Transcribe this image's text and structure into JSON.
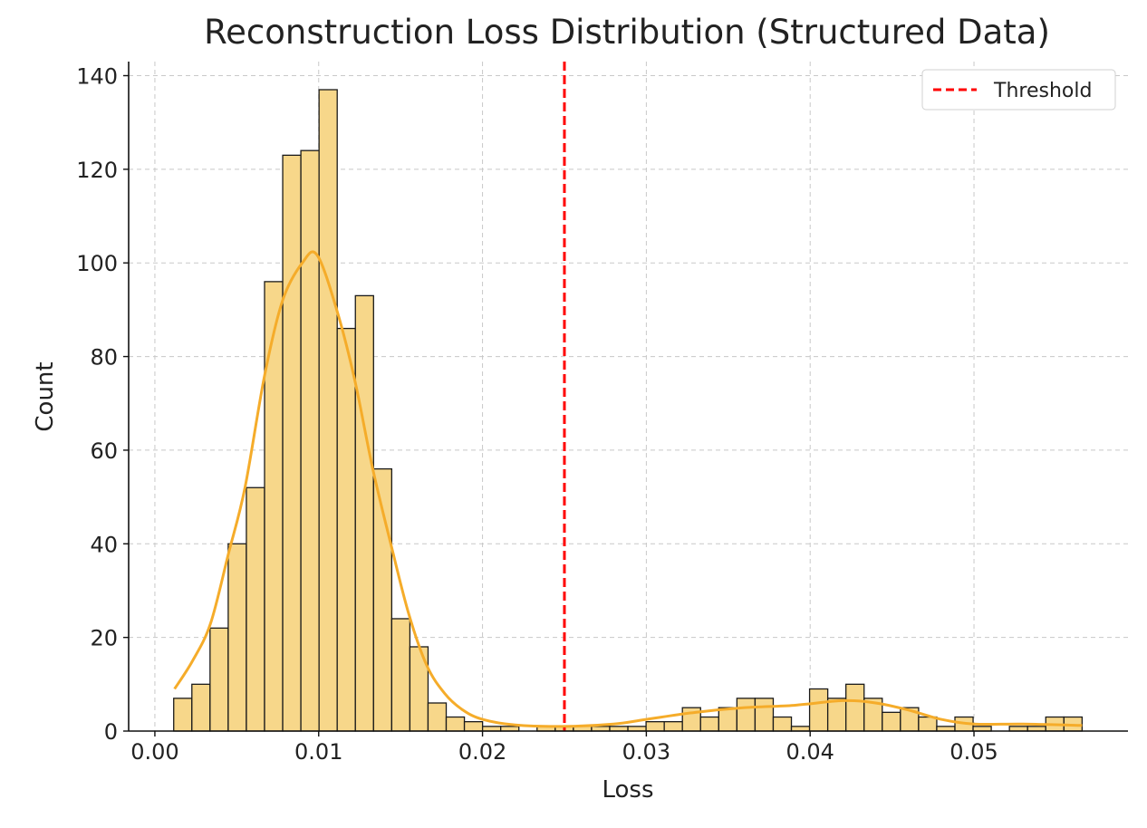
{
  "chart_data": {
    "type": "histogram",
    "title": "Reconstruction Loss Distribution (Structured Data)",
    "xlabel": "Loss",
    "ylabel": "Count",
    "xlim": [
      -0.0016,
      0.0594
    ],
    "ylim": [
      0,
      143
    ],
    "xticks": [
      0.0,
      0.01,
      0.02,
      0.03,
      0.04,
      0.05
    ],
    "xtick_labels": [
      "0.00",
      "0.01",
      "0.02",
      "0.03",
      "0.04",
      "0.05"
    ],
    "yticks": [
      0,
      20,
      40,
      60,
      80,
      100,
      120,
      140
    ],
    "ytick_labels": [
      "0",
      "20",
      "40",
      "60",
      "80",
      "100",
      "120",
      "140"
    ],
    "grid": true,
    "bins": {
      "start": 0.00115,
      "end": 0.0566,
      "counts": [
        7,
        10,
        22,
        40,
        52,
        96,
        123,
        124,
        137,
        86,
        93,
        56,
        24,
        18,
        6,
        3,
        2,
        1,
        1,
        0,
        1,
        1,
        1,
        1,
        1,
        1,
        2,
        2,
        5,
        3,
        5,
        7,
        7,
        3,
        1,
        9,
        7,
        10,
        7,
        4,
        5,
        3,
        1,
        3,
        1,
        0,
        1,
        1,
        3,
        3
      ]
    },
    "kde": {
      "x": [
        0.0012,
        0.0023,
        0.0034,
        0.0045,
        0.0055,
        0.0067,
        0.0078,
        0.009,
        0.0099,
        0.0111,
        0.0122,
        0.0133,
        0.0144,
        0.0155,
        0.0166,
        0.0177,
        0.0188,
        0.02,
        0.022,
        0.025,
        0.028,
        0.03,
        0.033,
        0.036,
        0.039,
        0.042,
        0.044,
        0.046,
        0.048,
        0.05,
        0.053,
        0.0566
      ],
      "y": [
        9,
        15,
        23,
        38,
        52,
        76,
        92,
        100,
        101.7,
        90,
        75,
        56,
        40,
        25,
        14,
        8,
        4.5,
        2.5,
        1.3,
        1,
        1.5,
        2.5,
        4,
        5,
        5.5,
        6.5,
        6,
        4.5,
        2.5,
        1.5,
        1.5,
        1.2
      ]
    },
    "threshold": 0.025,
    "legend": {
      "position": "top-right",
      "entries": [
        "Threshold"
      ]
    },
    "colors": {
      "bar_fill": "#f7d78a",
      "bar_edge": "#1a1a1a",
      "kde": "#f5ac2a",
      "threshold": "#ff0000",
      "grid": "#c8c8c8"
    }
  }
}
